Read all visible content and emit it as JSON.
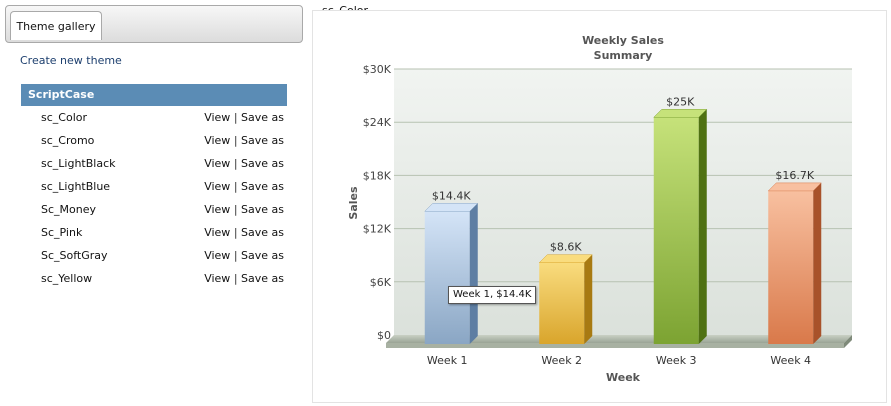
{
  "sidebar": {
    "tab_label": "Theme gallery",
    "create_label": "Create new theme",
    "group_label": "ScriptCase",
    "view_label": "View",
    "separator": "|",
    "save_label": "Save as",
    "themes": [
      "sc_Color",
      "sc_Cromo",
      "sc_LightBlack",
      "sc_LightBlue",
      "Sc_Money",
      "Sc_Pink",
      "Sc_SoftGray",
      "sc_Yellow"
    ]
  },
  "preview": {
    "theme_name": "sc_Color",
    "tooltip": "Week 1, $14.4K"
  },
  "chart_data": {
    "type": "bar",
    "title": "Weekly Sales",
    "subtitle": "Summary",
    "xlabel": "Week",
    "ylabel": "Sales",
    "categories": [
      "Week 1",
      "Week 2",
      "Week 3",
      "Week 4"
    ],
    "values": [
      14400,
      8600,
      25000,
      16700
    ],
    "value_labels": [
      "$14.4K",
      "$8.6K",
      "$25K",
      "$16.7K"
    ],
    "ylim": [
      0,
      30000
    ],
    "yticks": [
      0,
      6000,
      12000,
      18000,
      24000,
      30000
    ],
    "ytick_labels": [
      "$0",
      "$6K",
      "$12K",
      "$18K",
      "$24K",
      "$30K"
    ],
    "grid": true,
    "legend": "none",
    "colors": [
      {
        "light": "#d4e4f7",
        "main": "#8aa6c4",
        "dark": "#5e7ea3"
      },
      {
        "light": "#f9dc7e",
        "main": "#d9a52c",
        "dark": "#a87a12"
      },
      {
        "light": "#c6e27a",
        "main": "#7ca332",
        "dark": "#4f7112"
      },
      {
        "light": "#f8c0a0",
        "main": "#d9794a",
        "dark": "#a8522a"
      }
    ]
  }
}
